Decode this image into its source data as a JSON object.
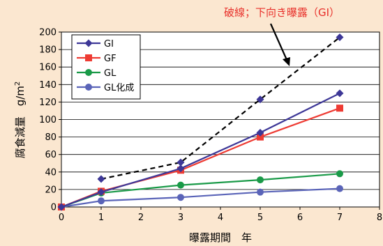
{
  "chart_data": {
    "type": "line",
    "xlabel": "曝露期間　年",
    "ylabel": "腐食減量　g/m",
    "ylabel_sup": "2",
    "xlim": [
      0,
      8
    ],
    "ylim": [
      0,
      200
    ],
    "xticks": [
      "0",
      "1",
      "2",
      "3",
      "4",
      "5",
      "6",
      "7",
      "8"
    ],
    "yticks": [
      "0",
      "20",
      "40",
      "60",
      "80",
      "100",
      "120",
      "140",
      "160",
      "180",
      "200"
    ],
    "grid": "horizontal",
    "legend": "top-left",
    "series": [
      {
        "name": "GI",
        "color": "#3d3797",
        "marker": "diamond",
        "x": [
          0,
          1,
          3,
          5,
          7
        ],
        "y": [
          0,
          17,
          44,
          85,
          130
        ]
      },
      {
        "name": "GF",
        "color": "#ee3b33",
        "marker": "square",
        "x": [
          0,
          1,
          3,
          5,
          7
        ],
        "y": [
          0,
          18,
          42,
          80,
          113
        ]
      },
      {
        "name": "GL",
        "color": "#1a9a48",
        "marker": "circle",
        "x": [
          0,
          1,
          3,
          5,
          7
        ],
        "y": [
          0,
          16,
          25,
          31,
          38
        ]
      },
      {
        "name": "GL化成",
        "color": "#5a64b8",
        "marker": "circle",
        "x": [
          0,
          1,
          3,
          5,
          7
        ],
        "y": [
          0,
          7,
          11,
          17,
          21
        ]
      }
    ],
    "dashed_series": {
      "color": "#3d3797",
      "marker": "diamond",
      "x": [
        1,
        3,
        5,
        7
      ],
      "y": [
        32,
        51,
        123,
        194
      ]
    },
    "annotation": {
      "text": "破線；下向き曝露（GI）",
      "color": "#e8302a"
    }
  }
}
